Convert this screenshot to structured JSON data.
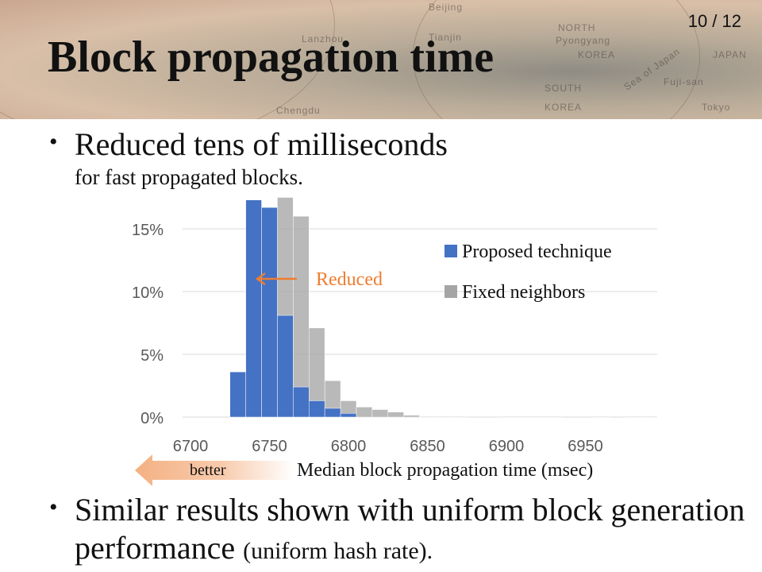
{
  "slide": {
    "title": "Block propagation time",
    "page": "10 / 12",
    "bullet1": "Reduced tens of milliseconds",
    "bullet1_sub": "for fast propagated blocks.",
    "bullet2_main": "Similar results shown with uniform block generation performance",
    "bullet2_paren": "(uniform hash rate)."
  },
  "banner_text": [
    "Beijing",
    "NORTH",
    "Pyongyang",
    "KOREA",
    "SOUTH",
    "KOREA",
    "JAPAN",
    "Tokyo",
    "Sea of Japan",
    "Tianjin",
    "Fuji-san",
    "Chengdu",
    "Lanzhou"
  ],
  "annotations": {
    "reduced": "Reduced",
    "better": "better"
  },
  "colors": {
    "proposed": "#4472c4",
    "fixed": "#a5a5a5",
    "reduced_arrow": "#ed7d31",
    "better_arrow": "#f4b183"
  },
  "chart_data": {
    "type": "bar",
    "xlabel": "Median block propagation  time (msec)",
    "x_ticks": [
      6700,
      6750,
      6800,
      6850,
      6900,
      6950
    ],
    "y_ticks": [
      "0%",
      "5%",
      "10%",
      "15%"
    ],
    "ylim": [
      0,
      15
    ],
    "xlim": [
      6700,
      6995
    ],
    "bin_width": 10,
    "grid": true,
    "legend_position": "right",
    "series": [
      {
        "name": "Proposed  technique",
        "bin_starts": [
          6725,
          6735,
          6745,
          6755,
          6765,
          6775,
          6785,
          6795
        ],
        "values": [
          3.6,
          17.3,
          16.7,
          8.1,
          2.4,
          1.3,
          0.7,
          0.3
        ]
      },
      {
        "name": "Fixed neighbors",
        "bin_starts": [
          6745,
          6755,
          6765,
          6775,
          6785,
          6795,
          6805,
          6815,
          6825,
          6835,
          6845,
          6855,
          6865,
          6895,
          6905,
          6915,
          6925,
          6955,
          6975,
          6985
        ],
        "values": [
          3.6,
          17.5,
          16.0,
          7.1,
          2.9,
          1.3,
          0.8,
          0.6,
          0.4,
          0.15,
          0.05,
          0.05,
          0.05,
          0.05,
          0.05,
          0.05,
          0.05,
          0.05,
          0.05,
          0.05
        ]
      }
    ]
  }
}
